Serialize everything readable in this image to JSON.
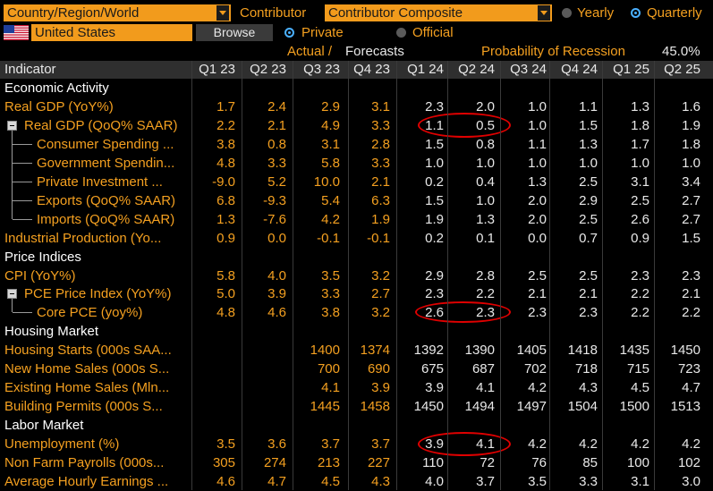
{
  "top": {
    "country_field": "Country/Region/World",
    "contributor_label": "Contributor",
    "contributor_field": "Contributor Composite",
    "freq_yearly": "Yearly",
    "freq_quarterly": "Quarterly",
    "country_value": "United States",
    "browse": "Browse",
    "private": "Private",
    "official": "Official",
    "actual_label": "Actual /",
    "forecasts_label": "Forecasts",
    "recession_label": "Probability of Recession",
    "recession_value": "45.0%"
  },
  "columns": [
    "Indicator",
    "Q1 23",
    "Q2 23",
    "Q3 23",
    "Q4 23",
    "Q1 24",
    "Q2 24",
    "Q3 24",
    "Q4 24",
    "Q1 25",
    "Q2 25"
  ],
  "rows": [
    {
      "type": "section",
      "name": "Economic Activity"
    },
    {
      "name": "Real GDP (YoY%)",
      "vals": [
        "1.7",
        "2.4",
        "2.9",
        "3.1",
        "2.3",
        "2.0",
        "1.0",
        "1.1",
        "1.3",
        "1.6"
      ]
    },
    {
      "name": "Real GDP (QoQ% SAAR)",
      "collapse": true,
      "vals": [
        "2.2",
        "2.1",
        "4.9",
        "3.3",
        "1.1",
        "0.5",
        "1.0",
        "1.5",
        "1.8",
        "1.9"
      ]
    },
    {
      "name": "Consumer Spending ...",
      "child": true,
      "vals": [
        "3.8",
        "0.8",
        "3.1",
        "2.8",
        "1.5",
        "0.8",
        "1.1",
        "1.3",
        "1.7",
        "1.8"
      ]
    },
    {
      "name": "Government Spendin...",
      "child": true,
      "vals": [
        "4.8",
        "3.3",
        "5.8",
        "3.3",
        "1.0",
        "1.0",
        "1.0",
        "1.0",
        "1.0",
        "1.0"
      ]
    },
    {
      "name": "Private Investment ...",
      "child": true,
      "vals": [
        "-9.0",
        "5.2",
        "10.0",
        "2.1",
        "0.2",
        "0.4",
        "1.3",
        "2.5",
        "3.1",
        "3.4"
      ]
    },
    {
      "name": "Exports (QoQ% SAAR)",
      "child": true,
      "vals": [
        "6.8",
        "-9.3",
        "5.4",
        "6.3",
        "1.5",
        "1.0",
        "2.0",
        "2.9",
        "2.5",
        "2.7"
      ]
    },
    {
      "name": "Imports (QoQ% SAAR)",
      "child": true,
      "last": true,
      "vals": [
        "1.3",
        "-7.6",
        "4.2",
        "1.9",
        "1.9",
        "1.3",
        "2.0",
        "2.5",
        "2.6",
        "2.7"
      ]
    },
    {
      "name": "Industrial Production (Yo...",
      "vals": [
        "0.9",
        "0.0",
        "-0.1",
        "-0.1",
        "0.2",
        "0.1",
        "0.0",
        "0.7",
        "0.9",
        "1.5"
      ]
    },
    {
      "type": "section",
      "name": "Price Indices"
    },
    {
      "name": "CPI (YoY%)",
      "vals": [
        "5.8",
        "4.0",
        "3.5",
        "3.2",
        "2.9",
        "2.8",
        "2.5",
        "2.5",
        "2.3",
        "2.3"
      ]
    },
    {
      "name": "PCE Price Index (YoY%)",
      "collapse": true,
      "vals": [
        "5.0",
        "3.9",
        "3.3",
        "2.7",
        "2.3",
        "2.2",
        "2.1",
        "2.1",
        "2.2",
        "2.1"
      ]
    },
    {
      "name": "Core PCE (yoy%)",
      "child": true,
      "last": true,
      "vals": [
        "4.8",
        "4.6",
        "3.8",
        "3.2",
        "2.6",
        "2.3",
        "2.3",
        "2.3",
        "2.2",
        "2.2"
      ]
    },
    {
      "type": "section",
      "name": "Housing Market"
    },
    {
      "name": "Housing Starts (000s SAA...",
      "vals": [
        "",
        "",
        "1400",
        "1374",
        "1392",
        "1390",
        "1405",
        "1418",
        "1435",
        "1450"
      ]
    },
    {
      "name": "New Home Sales (000s S...",
      "vals": [
        "",
        "",
        "700",
        "690",
        "675",
        "687",
        "702",
        "718",
        "715",
        "723"
      ]
    },
    {
      "name": "Existing Home Sales (Mln...",
      "vals": [
        "",
        "",
        "4.1",
        "3.9",
        "3.9",
        "4.1",
        "4.2",
        "4.3",
        "4.5",
        "4.7"
      ]
    },
    {
      "name": "Building Permits (000s S...",
      "vals": [
        "",
        "",
        "1445",
        "1458",
        "1450",
        "1494",
        "1497",
        "1504",
        "1500",
        "1513"
      ]
    },
    {
      "type": "section",
      "name": "Labor Market"
    },
    {
      "name": "Unemployment (%)",
      "vals": [
        "3.5",
        "3.6",
        "3.7",
        "3.7",
        "3.9",
        "4.1",
        "4.2",
        "4.2",
        "4.2",
        "4.2"
      ]
    },
    {
      "name": "Non Farm Payrolls (000s...",
      "vals": [
        "305",
        "274",
        "213",
        "227",
        "110",
        "72",
        "76",
        "85",
        "100",
        "102"
      ]
    },
    {
      "name": "Average Hourly Earnings ...",
      "vals": [
        "4.6",
        "4.7",
        "4.5",
        "4.3",
        "4.0",
        "3.7",
        "3.5",
        "3.3",
        "3.1",
        "3.0"
      ]
    }
  ]
}
